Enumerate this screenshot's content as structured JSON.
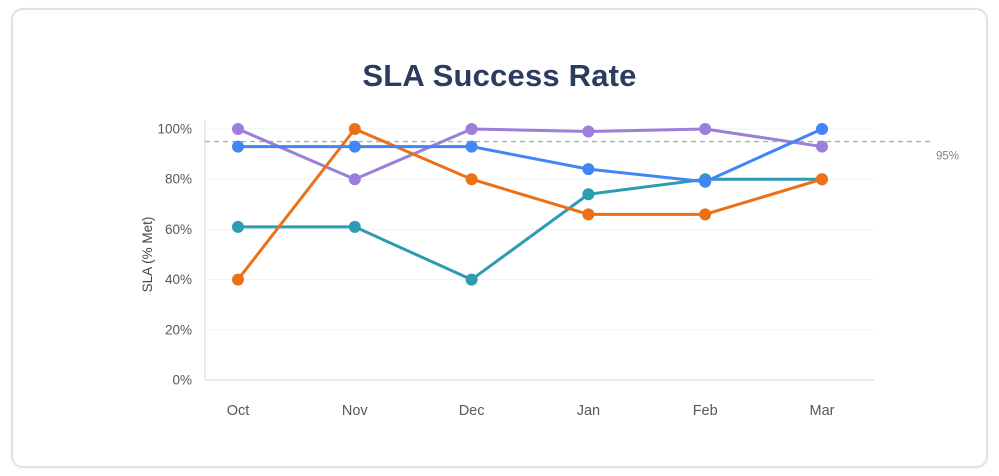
{
  "chart_data": {
    "type": "line",
    "title": "SLA Success Rate",
    "xlabel": "",
    "ylabel": "SLA (% Met)",
    "categories": [
      "Oct",
      "Nov",
      "Dec",
      "Jan",
      "Feb",
      "Mar"
    ],
    "yticks": [
      {
        "value": 0,
        "label": "0%"
      },
      {
        "value": 20,
        "label": "20%"
      },
      {
        "value": 40,
        "label": "40%"
      },
      {
        "value": 60,
        "label": "60%"
      },
      {
        "value": 80,
        "label": "80%"
      },
      {
        "value": 100,
        "label": "100%"
      }
    ],
    "ylim": [
      0,
      100
    ],
    "grid": "light horizontal gridlines",
    "legend": "none",
    "threshold": {
      "value": 95,
      "label": "95%",
      "color": "#aab0b8",
      "style": "dashed"
    },
    "series": [
      {
        "name": "purple",
        "color": "#9b7fd9",
        "values": [
          100,
          80,
          100,
          99,
          100,
          93
        ]
      },
      {
        "name": "teal",
        "color": "#2b9cb2",
        "values": [
          61,
          61,
          40,
          74,
          80,
          80
        ]
      },
      {
        "name": "orange",
        "color": "#ec7116",
        "values": [
          40,
          100,
          80,
          66,
          66,
          80
        ]
      },
      {
        "name": "blue",
        "color": "#4285f4",
        "values": [
          93,
          93,
          93,
          84,
          79,
          100
        ]
      }
    ]
  },
  "style": {
    "axis_color": "#dfe3e9",
    "grid_color": "#eff1f5",
    "tick_color": "#54585f",
    "ylabel_color": "#43474d",
    "threshold_text_color": "#82878d"
  }
}
